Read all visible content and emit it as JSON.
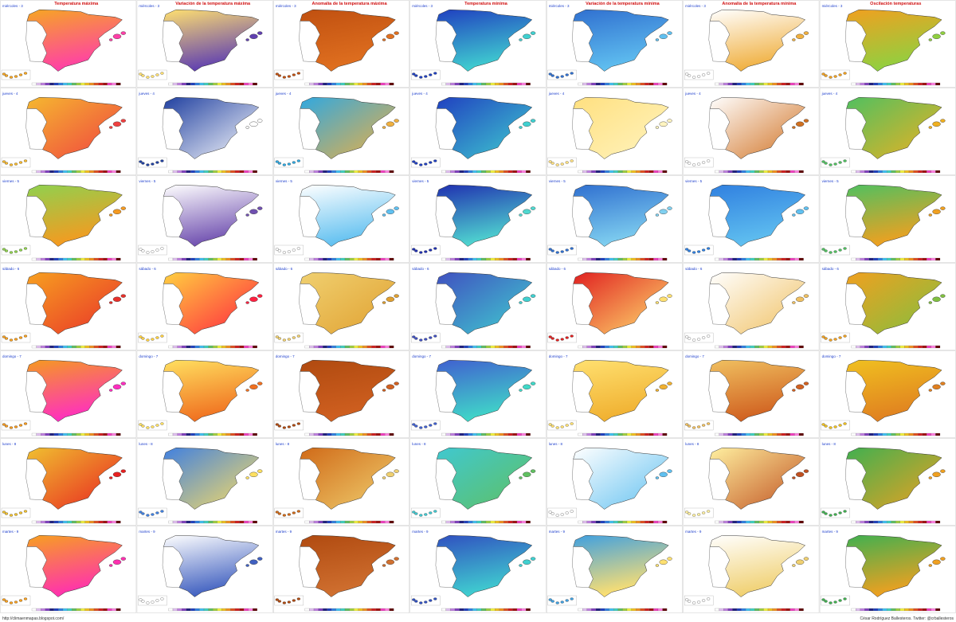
{
  "header": {
    "columns": [
      "Temperatura máxima",
      "Variación de la temperatura máxima",
      "Anomalía de la temperatura máxima",
      "Temperatura mínima",
      "Variación de la temperatura mínima",
      "Anomalía de la temperatura mínima",
      "Oscilación temperaturas"
    ]
  },
  "rows": [
    "miércoles - 3",
    "jueves - 4",
    "viernes - 5",
    "sábado - 6",
    "domingo - 7",
    "lunes - 8",
    "martes - 9"
  ],
  "footer": {
    "left": "http://climaenmapas.blogspot.com/",
    "right": "César Rodríguez Ballesteros. Twitter: @crballesteros"
  }
}
